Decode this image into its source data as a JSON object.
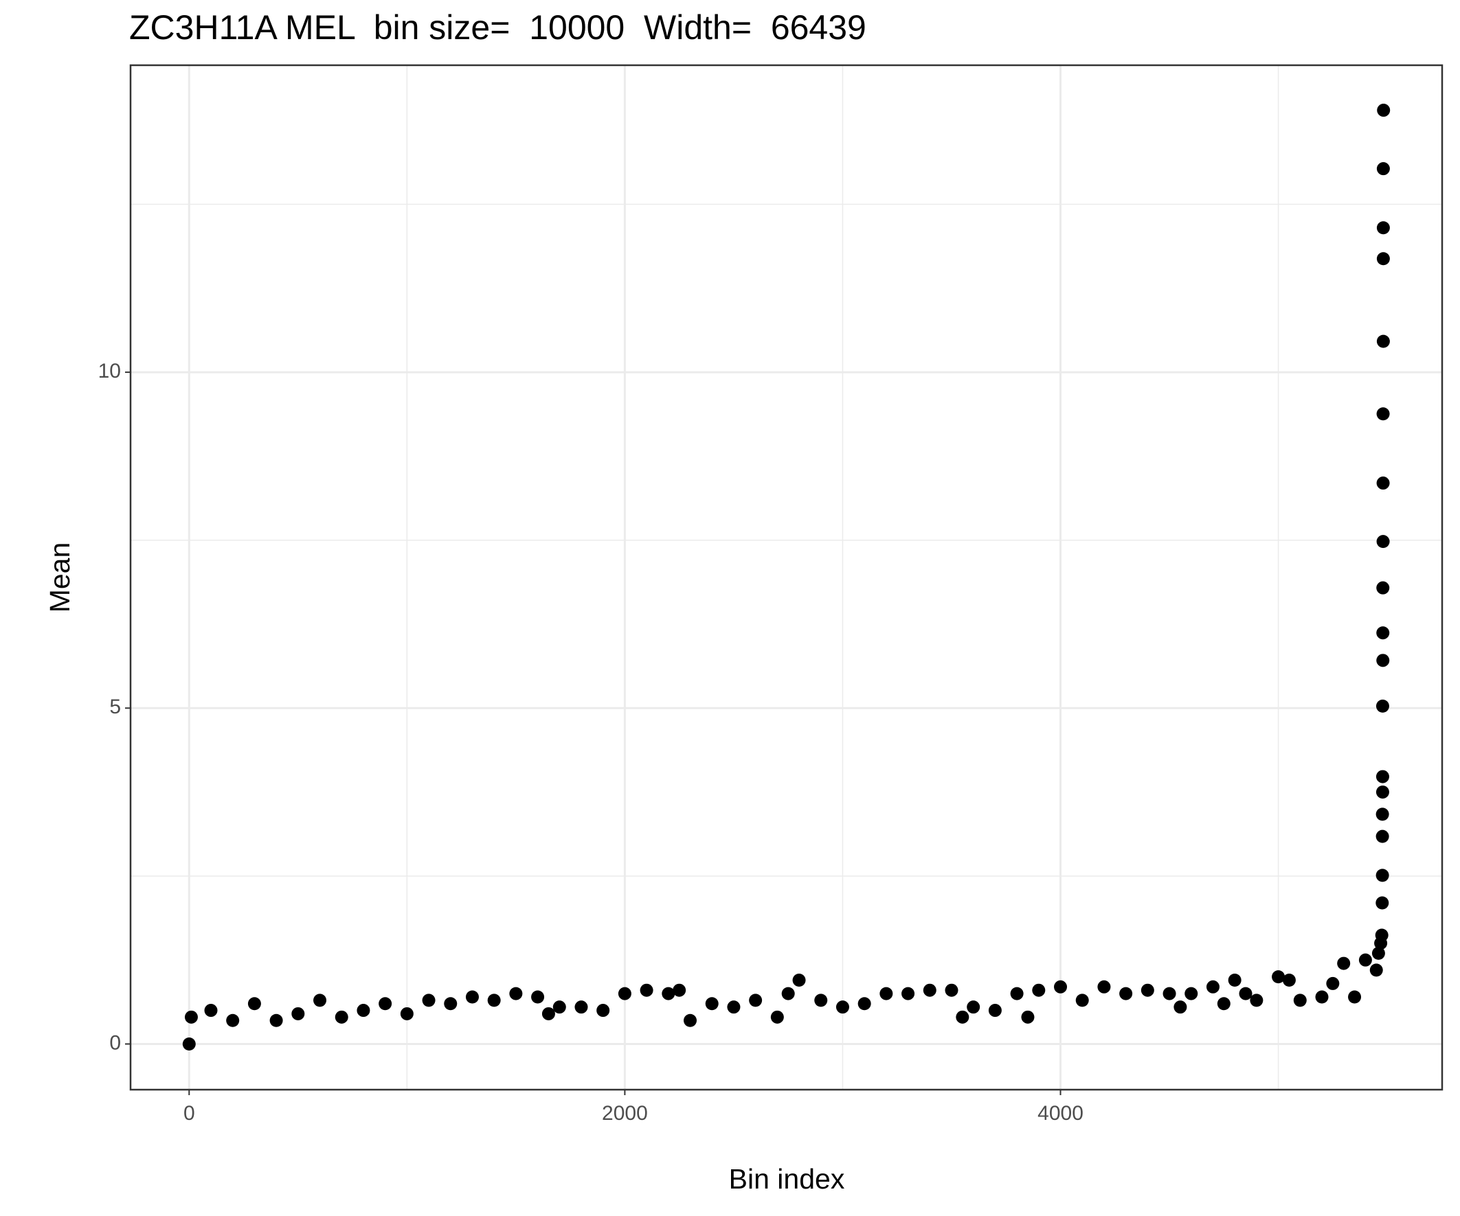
{
  "chart_data": {
    "type": "scatter",
    "title": "ZC3H11A MEL  bin size=  10000  Width=  66439",
    "x_label": "Bin index",
    "y_label": "Mean",
    "color": "#000000",
    "x": [
      0,
      10,
      100,
      200,
      300,
      400,
      500,
      600,
      700,
      800,
      900,
      1000,
      1100,
      1200,
      1300,
      1400,
      1500,
      1600,
      1650,
      1700,
      1800,
      1900,
      2000,
      2100,
      2200,
      2250,
      2300,
      2400,
      2500,
      2600,
      2700,
      2750,
      2800,
      2900,
      3000,
      3100,
      3200,
      3300,
      3400,
      3500,
      3550,
      3600,
      3700,
      3800,
      3850,
      3900,
      4000,
      4100,
      4200,
      4300,
      4400,
      4500,
      4550,
      4600,
      4700,
      4750,
      4800,
      4850,
      4900,
      5000,
      5050,
      5100,
      5200,
      5250,
      5300,
      5350,
      5400,
      5450,
      5460,
      5470,
      5475,
      5477,
      5478,
      5478,
      5478,
      5479,
      5479,
      5479,
      5480,
      5480,
      5480,
      5481,
      5481,
      5481,
      5482,
      5482,
      5482,
      5482,
      5483
    ],
    "values": [
      0,
      0.4,
      0.5,
      0.35,
      0.6,
      0.35,
      0.45,
      0.65,
      0.4,
      0.5,
      0.6,
      0.45,
      0.65,
      0.6,
      0.7,
      0.65,
      0.75,
      0.7,
      0.45,
      0.55,
      0.55,
      0.5,
      0.75,
      0.8,
      0.75,
      0.8,
      0.35,
      0.6,
      0.55,
      0.65,
      0.4,
      0.75,
      0.95,
      0.65,
      0.55,
      0.6,
      0.75,
      0.75,
      0.8,
      0.8,
      0.4,
      0.55,
      0.5,
      0.75,
      0.4,
      0.8,
      0.85,
      0.65,
      0.85,
      0.75,
      0.8,
      0.75,
      0.55,
      0.75,
      0.85,
      0.6,
      0.95,
      0.75,
      0.65,
      1.0,
      0.95,
      0.65,
      0.7,
      0.9,
      1.2,
      0.7,
      1.25,
      1.1,
      1.35,
      1.5,
      1.62,
      2.1,
      2.51,
      3.09,
      3.42,
      3.75,
      3.98,
      5.03,
      5.71,
      6.12,
      6.79,
      7.48,
      8.35,
      9.38,
      10.46,
      11.69,
      12.15,
      13.03,
      13.9
    ],
    "xlim": [
      -269,
      5752
    ],
    "ylim": [
      -0.68,
      14.57
    ],
    "xticks": [
      0,
      2000,
      4000
    ],
    "yticks": [
      0,
      5,
      10
    ],
    "x_minor_grid": [
      1000,
      3000,
      5000
    ],
    "y_minor_grid": [
      2.5,
      7.5,
      12.5
    ],
    "grid": true
  }
}
